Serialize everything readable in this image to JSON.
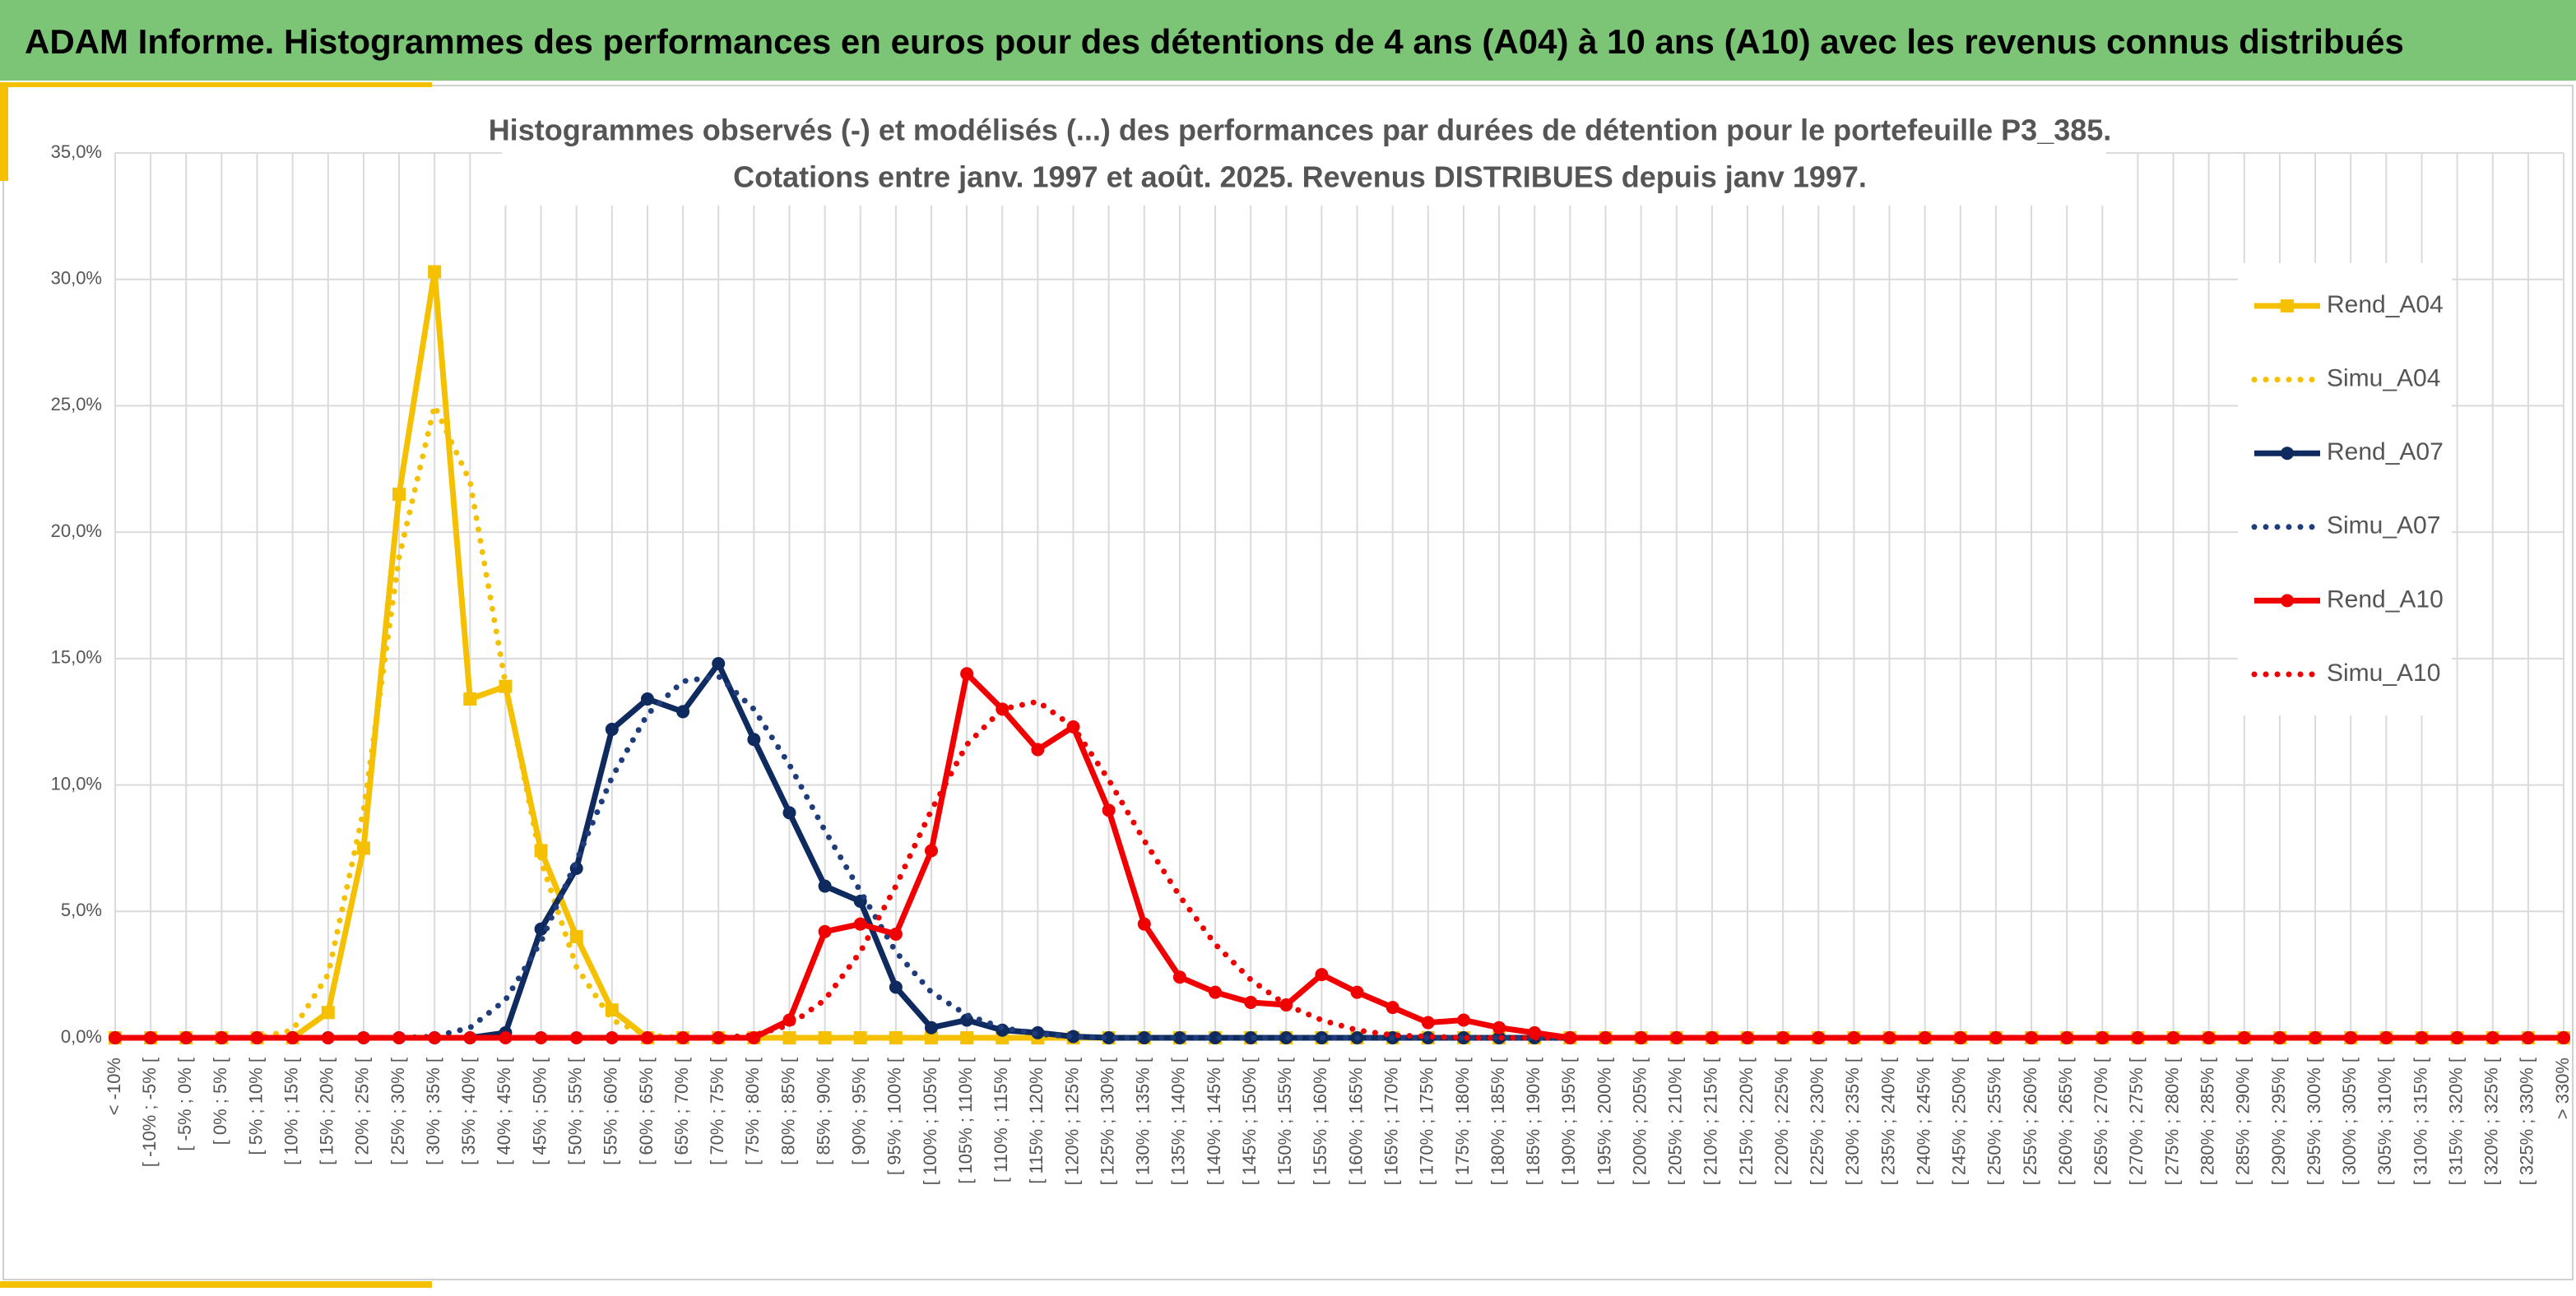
{
  "header": {
    "title": "ADAM Informe. Histogrammes des performances en euros pour des détentions de 4 ans (A04) à 10 ans (A10) avec les revenus connus distribués"
  },
  "chart_data": {
    "type": "line",
    "title": "Histogrammes observés (-) et modélisés (...) des performances par durées de détention pour le portefeuille P3_385.",
    "subtitle": "Cotations entre janv. 1997 et août. 2025. Revenus DISTRIBUES depuis janv 1997.",
    "categories": [
      "< -10%",
      "[ -10% ; -5% [",
      "[ -5% ; 0% [",
      "[ 0% ; 5% [",
      "[ 5% ; 10% [",
      "[ 10% ; 15% [",
      "[ 15% ; 20% [",
      "[ 20% ; 25% [",
      "[ 25% ; 30% [",
      "[ 30% ; 35% [",
      "[ 35% ; 40% [",
      "[ 40% ; 45% [",
      "[ 45% ; 50% [",
      "[ 50% ; 55% [",
      "[ 55% ; 60% [",
      "[ 60% ; 65% [",
      "[ 65% ; 70% [",
      "[ 70% ; 75% [",
      "[ 75% ; 80% [",
      "[ 80% ; 85% [",
      "[ 85% ; 90% [",
      "[ 90% ; 95% [",
      "[ 95% ; 100% [",
      "[ 100% ; 105% [",
      "[ 105% ; 110% [",
      "[ 110% ; 115% [",
      "[ 115% ; 120% [",
      "[ 120% ; 125% [",
      "[ 125% ; 130% [",
      "[ 130% ; 135% [",
      "[ 135% ; 140% [",
      "[ 140% ; 145% [",
      "[ 145% ; 150% [",
      "[ 150% ; 155% [",
      "[ 155% ; 160% [",
      "[ 160% ; 165% [",
      "[ 165% ; 170% [",
      "[ 170% ; 175% [",
      "[ 175% ; 180% [",
      "[ 180% ; 185% [",
      "[ 185% ; 190% [",
      "[ 190% ; 195% [",
      "[ 195% ; 200% [",
      "[ 200% ; 205% [",
      "[ 205% ; 210% [",
      "[ 210% ; 215% [",
      "[ 215% ; 220% [",
      "[ 220% ; 225% [",
      "[ 225% ; 230% [",
      "[ 230% ; 235% [",
      "[ 235% ; 240% [",
      "[ 240% ; 245% [",
      "[ 245% ; 250% [",
      "[ 250% ; 255% [",
      "[ 255% ; 260% [",
      "[ 260% ; 265% [",
      "[ 265% ; 270% [",
      "[ 270% ; 275% [",
      "[ 275% ; 280% [",
      "[ 280% ; 285% [",
      "[ 285% ; 290% [",
      "[ 290% ; 295% [",
      "[ 295% ; 300% [",
      "[ 300% ; 305% [",
      "[ 305% ; 310% [",
      "[ 310% ; 315% [",
      "[ 315% ; 320% [",
      "[ 320% ; 325% [",
      "[ 325% ; 330% [",
      "> 330%"
    ],
    "series": [
      {
        "name": "Rend_A04",
        "color": "#f5c000",
        "style": "solid",
        "marker": "square",
        "values": [
          0,
          0,
          0,
          0,
          0,
          0,
          1,
          7.5,
          21.5,
          30.3,
          13.4,
          13.9,
          7.4,
          4,
          1.1,
          0,
          0,
          0,
          0,
          0,
          0,
          0,
          0,
          0,
          0,
          0,
          0,
          0,
          0,
          0,
          0,
          0,
          0,
          0,
          0,
          0,
          0,
          0,
          0,
          0,
          0,
          0,
          0,
          0,
          0,
          0,
          0,
          0,
          0,
          0,
          0,
          0,
          0,
          0,
          0,
          0,
          0,
          0,
          0,
          0,
          0,
          0,
          0,
          0,
          0,
          0,
          0,
          0,
          0,
          0
        ]
      },
      {
        "name": "Simu_A04",
        "color": "#f5c000",
        "style": "dotted",
        "marker": "none",
        "values": [
          0,
          0,
          0,
          0,
          0,
          0.3,
          2.5,
          9,
          19,
          25,
          22,
          14,
          7,
          2.8,
          0.7,
          0.1,
          0,
          0,
          0,
          0,
          0,
          0,
          0,
          0,
          0,
          0,
          0,
          0,
          0,
          0,
          0,
          0,
          0,
          0,
          0,
          0,
          0,
          0,
          0,
          0,
          0,
          0,
          0,
          0,
          0,
          0,
          0,
          0,
          0,
          0,
          0,
          0,
          0,
          0,
          0,
          0,
          0,
          0,
          0,
          0,
          0,
          0,
          0,
          0,
          0,
          0,
          0,
          0,
          0,
          0
        ]
      },
      {
        "name": "Rend_A07",
        "color": "#0f2a5e",
        "style": "solid",
        "marker": "circle",
        "values": [
          0,
          0,
          0,
          0,
          0,
          0,
          0,
          0,
          0,
          0,
          0,
          0.2,
          4.3,
          6.7,
          12.2,
          13.4,
          12.9,
          14.8,
          11.8,
          8.9,
          6,
          5.4,
          2,
          0.4,
          0.7,
          0.3,
          0.2,
          0.05,
          0,
          0,
          0,
          0,
          0,
          0,
          0,
          0,
          0,
          0,
          0,
          0,
          0,
          0,
          0,
          0,
          0,
          0,
          0,
          0,
          0,
          0,
          0,
          0,
          0,
          0,
          0,
          0,
          0,
          0,
          0,
          0,
          0,
          0,
          0,
          0,
          0,
          0,
          0,
          0,
          0,
          0
        ]
      },
      {
        "name": "Simu_A07",
        "color": "#1f3d7a",
        "style": "dotted",
        "marker": "none",
        "values": [
          0,
          0,
          0,
          0,
          0,
          0,
          0,
          0,
          0,
          0.05,
          0.4,
          1.5,
          3.8,
          7,
          10.3,
          12.8,
          14.1,
          14.3,
          13,
          10.8,
          8.2,
          5.8,
          3.4,
          1.8,
          0.9,
          0.4,
          0.15,
          0.05,
          0,
          0,
          0,
          0,
          0,
          0,
          0,
          0,
          0,
          0,
          0,
          0,
          0,
          0,
          0,
          0,
          0,
          0,
          0,
          0,
          0,
          0,
          0,
          0,
          0,
          0,
          0,
          0,
          0,
          0,
          0,
          0,
          0,
          0,
          0,
          0,
          0,
          0,
          0,
          0,
          0,
          0
        ]
      },
      {
        "name": "Rend_A10",
        "color": "#f00000",
        "style": "solid",
        "marker": "circle",
        "values": [
          0,
          0,
          0,
          0,
          0,
          0,
          0,
          0,
          0,
          0,
          0,
          0,
          0,
          0,
          0,
          0,
          0,
          0,
          0,
          0.7,
          4.2,
          4.5,
          4.1,
          7.4,
          14.4,
          13,
          11.4,
          12.3,
          9,
          4.5,
          2.4,
          1.8,
          1.4,
          1.3,
          2.5,
          1.8,
          1.2,
          0.6,
          0.7,
          0.4,
          0.2,
          0,
          0,
          0,
          0,
          0,
          0,
          0,
          0,
          0,
          0,
          0,
          0,
          0,
          0,
          0,
          0,
          0,
          0,
          0,
          0,
          0,
          0,
          0,
          0,
          0,
          0,
          0,
          0,
          0
        ]
      },
      {
        "name": "Simu_A10",
        "color": "#f00000",
        "style": "dotted",
        "marker": "none",
        "values": [
          0,
          0,
          0,
          0,
          0,
          0,
          0,
          0,
          0,
          0,
          0,
          0,
          0,
          0,
          0,
          0,
          0,
          0,
          0.1,
          0.5,
          1.5,
          3.4,
          6,
          9,
          11.6,
          13,
          13.3,
          12.3,
          10.2,
          7.8,
          5.6,
          3.7,
          2.3,
          1.3,
          0.7,
          0.3,
          0.1,
          0.05,
          0,
          0,
          0,
          0,
          0,
          0,
          0,
          0,
          0,
          0,
          0,
          0,
          0,
          0,
          0,
          0,
          0,
          0,
          0,
          0,
          0,
          0,
          0,
          0,
          0,
          0,
          0,
          0,
          0,
          0,
          0,
          0
        ]
      }
    ],
    "ylim": [
      0,
      35
    ],
    "yticks": [
      {
        "value": 0,
        "label": "0,0%"
      },
      {
        "value": 5,
        "label": "5,0%"
      },
      {
        "value": 10,
        "label": "10,0%"
      },
      {
        "value": 15,
        "label": "15,0%"
      },
      {
        "value": 20,
        "label": "20,0%"
      },
      {
        "value": 25,
        "label": "25,0%"
      },
      {
        "value": 30,
        "label": "30,0%"
      },
      {
        "value": 35,
        "label": "35,0%"
      }
    ],
    "grid": true,
    "legend": "right"
  }
}
